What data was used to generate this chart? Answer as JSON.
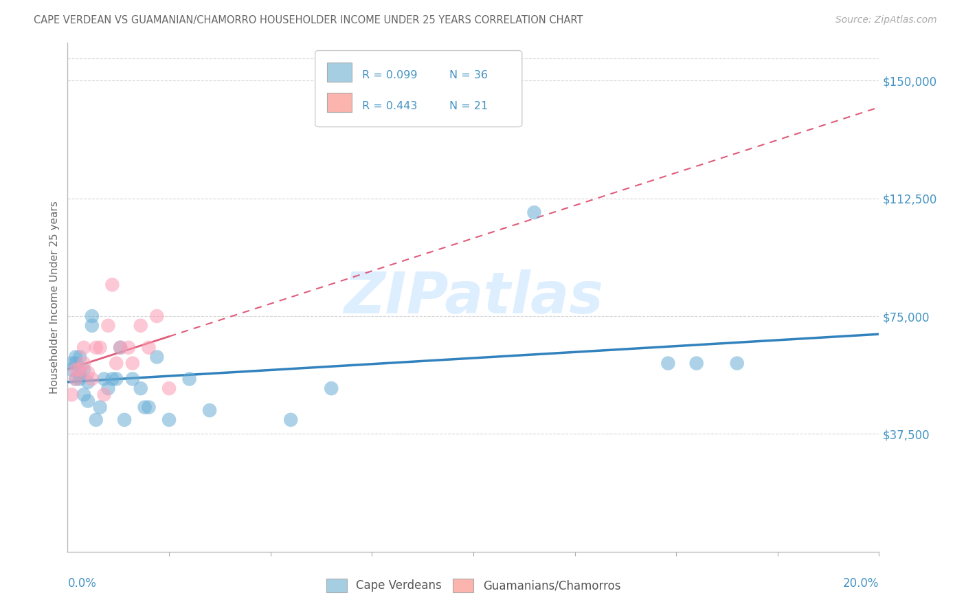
{
  "title": "CAPE VERDEAN VS GUAMANIAN/CHAMORRO HOUSEHOLDER INCOME UNDER 25 YEARS CORRELATION CHART",
  "source": "Source: ZipAtlas.com",
  "ylabel": "Householder Income Under 25 years",
  "axis_color": "#4393c3",
  "title_color": "#666666",
  "source_color": "#aaaaaa",
  "blue_scatter": "#6baed6",
  "pink_scatter": "#fc9cb4",
  "legend_blue_fill": "#a6cee3",
  "legend_pink_fill": "#fbb4ae",
  "line_blue_color": "#3182bd",
  "line_pink_color": "#e05c7a",
  "grid_color": "#cccccc",
  "watermark_color": "#ddeeff",
  "xmin": 0.0,
  "xmax": 0.2,
  "ymin": 0,
  "ymax": 162000,
  "ytick_vals": [
    37500,
    75000,
    112500,
    150000
  ],
  "ytick_labels": [
    "$37,500",
    "$75,000",
    "$112,500",
    "$150,000"
  ],
  "r_cv": 0.099,
  "n_cv": 36,
  "r_gc": 0.443,
  "n_gc": 21,
  "cv_x": [
    0.001,
    0.001,
    0.002,
    0.002,
    0.002,
    0.003,
    0.003,
    0.003,
    0.004,
    0.004,
    0.005,
    0.005,
    0.006,
    0.006,
    0.007,
    0.008,
    0.009,
    0.01,
    0.011,
    0.012,
    0.013,
    0.014,
    0.016,
    0.018,
    0.019,
    0.02,
    0.022,
    0.025,
    0.03,
    0.035,
    0.055,
    0.065,
    0.115,
    0.148,
    0.155,
    0.165
  ],
  "cv_y": [
    58000,
    60000,
    55000,
    62000,
    60000,
    57000,
    62000,
    55000,
    50000,
    58000,
    48000,
    54000,
    75000,
    72000,
    42000,
    46000,
    55000,
    52000,
    55000,
    55000,
    65000,
    42000,
    55000,
    52000,
    46000,
    46000,
    62000,
    42000,
    55000,
    45000,
    42000,
    52000,
    108000,
    60000,
    60000,
    60000
  ],
  "gc_x": [
    0.001,
    0.002,
    0.002,
    0.003,
    0.004,
    0.004,
    0.005,
    0.006,
    0.007,
    0.008,
    0.009,
    0.01,
    0.011,
    0.012,
    0.013,
    0.015,
    0.016,
    0.018,
    0.02,
    0.022,
    0.025
  ],
  "gc_y": [
    50000,
    55000,
    58000,
    58000,
    60000,
    65000,
    57000,
    55000,
    65000,
    65000,
    50000,
    72000,
    85000,
    60000,
    65000,
    65000,
    60000,
    72000,
    65000,
    75000,
    52000
  ]
}
